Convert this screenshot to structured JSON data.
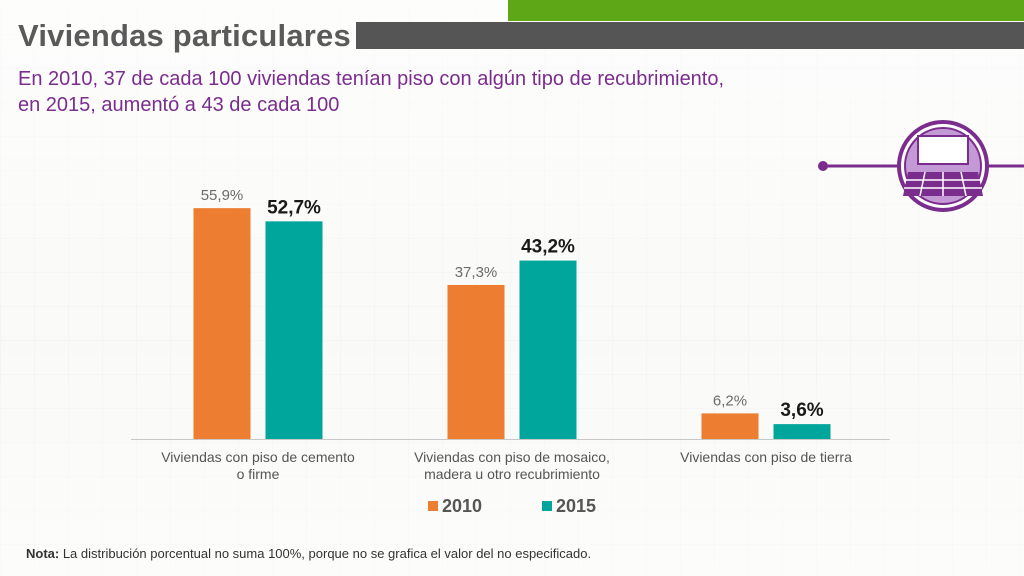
{
  "header": {
    "title": "Viviendas particulares",
    "subtitle_line1": "En 2010, 37 de cada 100 viviendas tenían piso con algún tipo de recubrimiento,",
    "subtitle_line2": "en 2015, aumentó a 43 de cada 100"
  },
  "colors": {
    "series_2010": "#ed7d31",
    "series_2015": "#00a59b",
    "accent_purple": "#7b2d8e",
    "icon_fill": "#c49ad6"
  },
  "icon": {
    "name": "floor-tiles-icon"
  },
  "chart_data": {
    "type": "bar",
    "categories": [
      [
        "Viviendas con piso de cemento",
        "o firme"
      ],
      [
        "Viviendas con piso de mosaico,",
        "madera u otro recubrimiento"
      ],
      [
        "Viviendas con piso de tierra"
      ]
    ],
    "series": [
      {
        "name": "2010",
        "values": [
          55.9,
          37.3,
          6.2
        ],
        "labels": [
          "55,9%",
          "37,3%",
          "6,2%"
        ]
      },
      {
        "name": "2015",
        "values": [
          52.7,
          43.2,
          3.6
        ],
        "labels": [
          "52,7%",
          "43,2%",
          "3,6%"
        ]
      }
    ],
    "ylim": [
      0,
      60
    ],
    "grid": false,
    "legend_position": "bottom"
  },
  "note": {
    "label": "Nota:",
    "text": " La distribución porcentual no suma 100%, porque no se grafica el valor del no especificado."
  }
}
